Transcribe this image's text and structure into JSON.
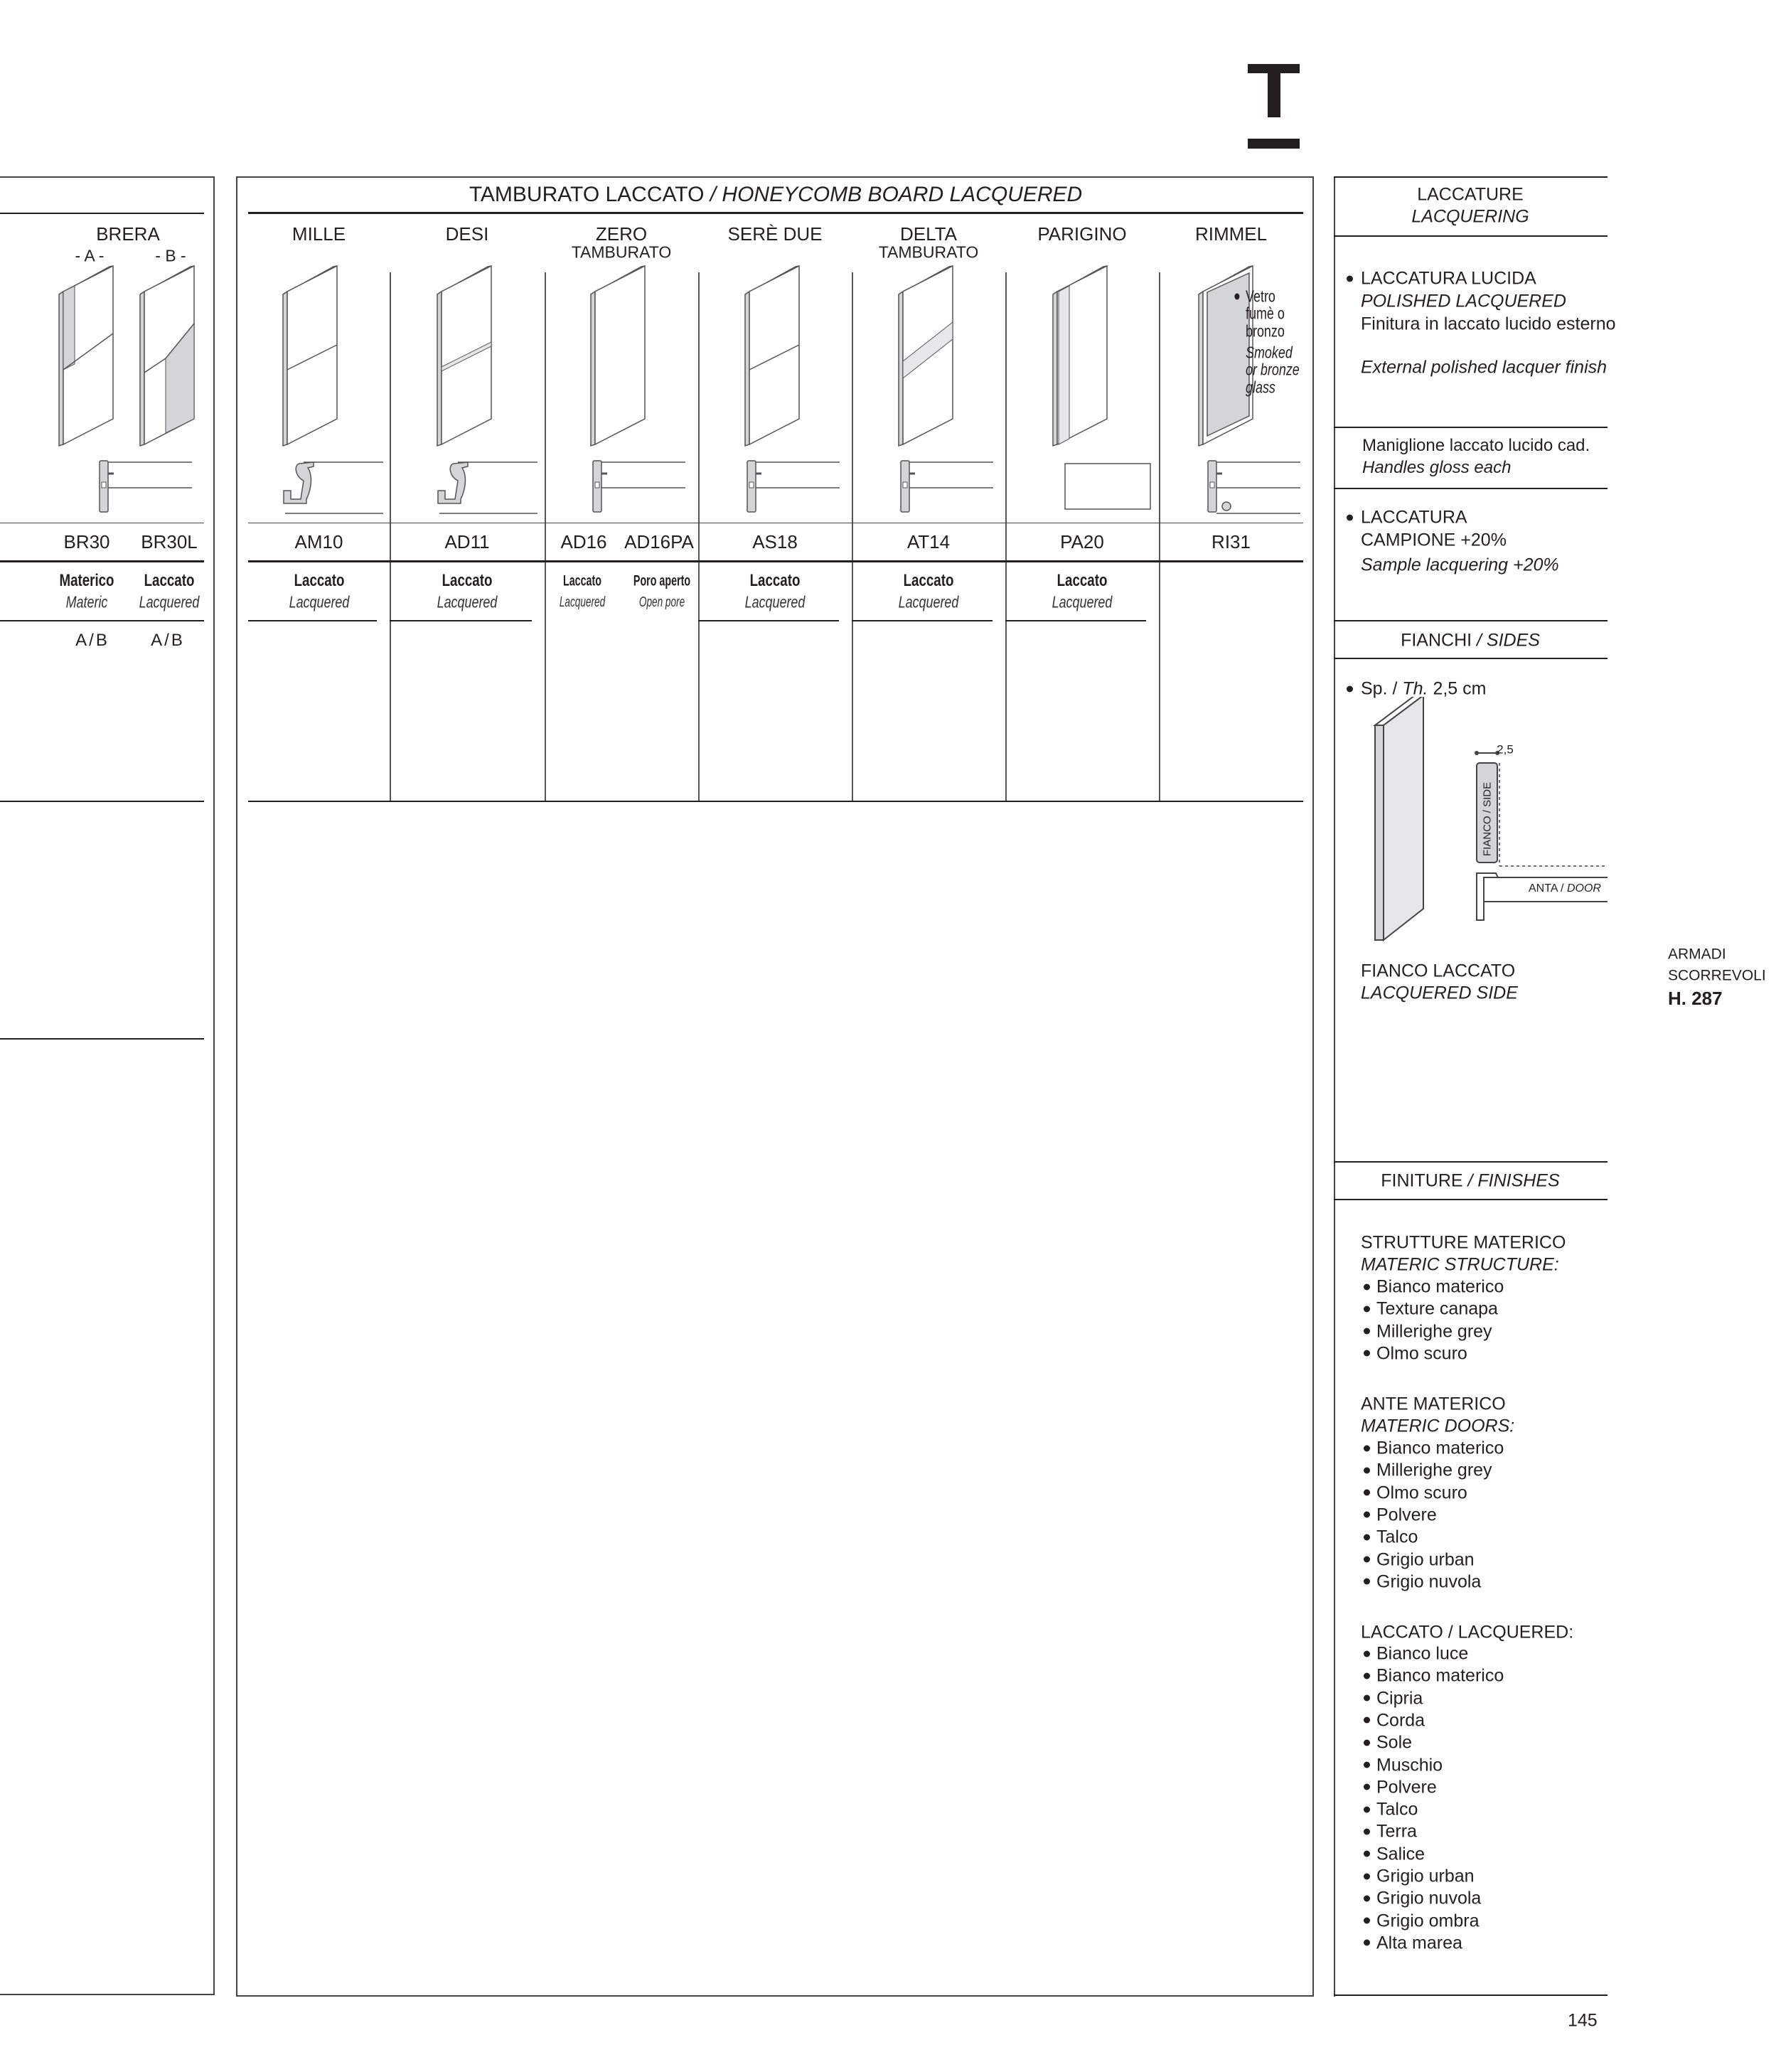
{
  "logo_letter": "T",
  "left_panel": {
    "model": "BRERA",
    "variants": [
      "- A -",
      "- B -"
    ],
    "codes": [
      "BR30",
      "BR30L"
    ],
    "finishes": [
      {
        "it": "Materico",
        "en": "Materic"
      },
      {
        "it": "Laccato",
        "en": "Lacquered"
      }
    ],
    "options": [
      "A/B",
      "A/B"
    ]
  },
  "main_panel": {
    "title": "TAMBURATO LACCATO",
    "title_en": "/ HONEYCOMB BOARD LACQUERED",
    "columns": [
      {
        "name": "MILLE",
        "sub": "",
        "codes": [
          "AM10"
        ],
        "finish_it": "Laccato",
        "finish_en": "Lacquered"
      },
      {
        "name": "DESI",
        "sub": "",
        "codes": [
          "AD11"
        ],
        "finish_it": "Laccato",
        "finish_en": "Lacquered"
      },
      {
        "name": "ZERO",
        "sub": "TAMBURATO",
        "codes": [
          "AD16",
          "AD16PA"
        ],
        "finishes": [
          {
            "it": "Laccato",
            "en": "Lacquered"
          },
          {
            "it": "Poro aperto",
            "en": "Open pore"
          }
        ]
      },
      {
        "name": "SERÈ DUE",
        "sub": "",
        "codes": [
          "AS18"
        ],
        "finish_it": "Laccato",
        "finish_en": "Lacquered"
      },
      {
        "name": "DELTA",
        "sub": "TAMBURATO",
        "codes": [
          "AT14"
        ],
        "finish_it": "Laccato",
        "finish_en": "Lacquered"
      },
      {
        "name": "PARIGINO",
        "sub": "",
        "codes": [
          "PA20"
        ],
        "finish_it": "Laccato",
        "finish_en": "Lacquered"
      },
      {
        "name": "RIMMEL",
        "sub": "",
        "codes": [
          "RI31"
        ],
        "finish_it": "",
        "finish_en": ""
      }
    ],
    "rimmel_note": [
      "Vetro",
      "fumè o",
      "bronzo",
      "Smoked",
      "or bronze",
      "glass"
    ]
  },
  "right_panel": {
    "lacquering": {
      "title": "LACCATURE",
      "title_en": "LACQUERING",
      "polished": {
        "title": "LACCATURA LUCIDA",
        "title_en": "POLISHED LACQUERED",
        "desc": "Finitura in laccato lucido esterno",
        "desc_en": "External polished lacquer finish"
      },
      "handles": {
        "it": "Maniglione laccato lucido cad.",
        "en": "Handles gloss each"
      },
      "sample": {
        "title_1": "LACCATURA",
        "title_2": "CAMPIONE +20%",
        "title_en": "Sample lacquering +20%"
      }
    },
    "sides": {
      "title": "FIANCHI",
      "title_en": "/ SIDES",
      "thickness_label": "Sp. /",
      "thickness_label_en": "Th.",
      "thickness_value": "2,5 cm",
      "dimension": "2,5",
      "side_label": "FIANCO / SIDE",
      "door_label": "ANTA /",
      "door_label_en": "DOOR",
      "caption": "FIANCO LACCATO",
      "caption_en": "LACQUERED SIDE"
    },
    "finishes": {
      "title": "FINITURE",
      "title_en": "/ FINISHES",
      "structures": {
        "title": "STRUTTURE MATERICO",
        "title_en": "MATERIC STRUCTURE:",
        "items": [
          "Bianco materico",
          "Texture canapa",
          "Millerighe grey",
          "Olmo scuro"
        ]
      },
      "doors": {
        "title": "ANTE MATERICO",
        "title_en": "MATERIC DOORS:",
        "items": [
          "Bianco materico",
          "Millerighe grey",
          "Olmo scuro",
          "Polvere",
          "Talco",
          "Grigio urban",
          "Grigio nuvola"
        ]
      },
      "lacquered": {
        "title": "LACCATO",
        "title_en": "/ LACQUERED:",
        "items": [
          "Bianco luce",
          "Bianco materico",
          "Cipria",
          "Corda",
          "Sole",
          "Muschio",
          "Polvere",
          "Talco",
          "Terra",
          "Salice",
          "Grigio urban",
          "Grigio nuvola",
          "Grigio ombra",
          "Alta marea"
        ]
      }
    }
  },
  "side_tab": {
    "line1": "ARMADI",
    "line2": "SCORREVOLI",
    "line3": "H. 287"
  },
  "page_number": "145",
  "colors": {
    "ink": "#231f20",
    "panel_gray": "#d4d5d7",
    "light_gray": "#e6e7e8"
  }
}
